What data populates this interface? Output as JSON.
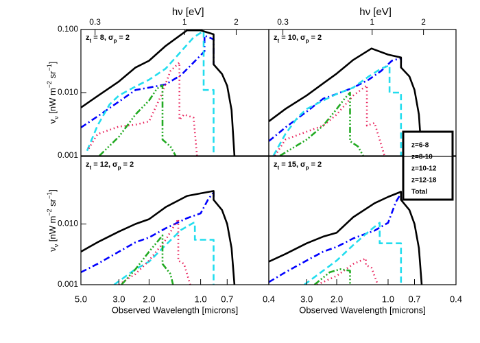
{
  "chart_data": [
    {
      "type": "line",
      "annotation": [
        "z",
        "t",
        " = 8, σ",
        "p",
        " = 2"
      ],
      "log_x": true,
      "log_y": true,
      "xlim": [
        5,
        0.4
      ],
      "ylim": [
        0.001,
        0.1
      ],
      "yticks": [
        {
          "value": 0.1,
          "label": "0.100"
        },
        {
          "value": 0.01,
          "label": "0.010"
        },
        0.001
      ],
      "x2label": "hν [eV]",
      "x2lim": [
        0.248,
        3.1
      ],
      "x2ticks": [
        0.3,
        1,
        2
      ],
      "ylabel": [
        "ν",
        "ν",
        "  [nW m",
        "−2",
        " sr",
        "−1",
        "]"
      ],
      "series": [
        {
          "name": "z=6-8",
          "color": "#0000ff",
          "line_style": "dashdot",
          "x": [
            5.0,
            4.0,
            3.0,
            2.4,
            2.0,
            1.6,
            1.3,
            1.1,
            0.95,
            0.95,
            0.84,
            0.84
          ],
          "values": [
            0.0028,
            0.0042,
            0.0072,
            0.011,
            0.012,
            0.0135,
            0.019,
            0.03,
            0.045,
            0.08,
            0.07,
            0.028
          ]
        },
        {
          "name": "z=8-10",
          "color": "#22ddee",
          "line_style": "dash",
          "x": [
            4.6,
            4.0,
            3.4,
            3.0,
            2.4,
            2.0,
            1.6,
            1.3,
            1.1,
            0.96,
            0.96,
            0.84,
            0.84
          ],
          "values": [
            0.0012,
            0.003,
            0.0065,
            0.009,
            0.0125,
            0.016,
            0.024,
            0.045,
            0.075,
            0.095,
            0.011,
            0.011,
            0.001
          ]
        },
        {
          "name": "z=10-12",
          "color": "#e8205a",
          "line_style": "dot",
          "x": [
            4.5,
            4.0,
            3.0,
            2.4,
            2.0,
            1.7,
            1.5,
            1.33,
            1.33,
            1.25,
            1.1,
            1.05
          ],
          "values": [
            0.0013,
            0.0022,
            0.0029,
            0.0031,
            0.0035,
            0.009,
            0.022,
            0.03,
            0.0037,
            0.0045,
            0.004,
            0.001
          ]
        },
        {
          "name": "z=12-18",
          "color": "#22aa22",
          "line_style": "dashdotdotdot",
          "x": [
            3.9,
            3.0,
            2.4,
            2.0,
            1.8,
            1.67,
            1.67,
            1.5,
            1.4
          ],
          "values": [
            0.001,
            0.002,
            0.0045,
            0.0075,
            0.0115,
            0.013,
            0.0018,
            0.0014,
            0.001
          ]
        },
        {
          "name": "Total",
          "color": "#000000",
          "line_style": "solid",
          "x": [
            5.0,
            4.0,
            3.0,
            2.4,
            2.0,
            1.6,
            1.2,
            1.0,
            0.84,
            0.84,
            0.75,
            0.7,
            0.66,
            0.635
          ],
          "values": [
            0.0058,
            0.0088,
            0.015,
            0.025,
            0.032,
            0.055,
            0.097,
            0.097,
            0.084,
            0.028,
            0.0197,
            0.0128,
            0.0053,
            0.001
          ]
        }
      ]
    },
    {
      "type": "line",
      "annotation": [
        "z",
        "t",
        " = 10, σ",
        "p",
        " = 2"
      ],
      "log_x": true,
      "log_y": true,
      "legend": "lower right",
      "xlim": [
        5,
        0.4
      ],
      "ylim": [
        0.001,
        0.1
      ],
      "x2label": "hν [eV]",
      "x2lim": [
        0.248,
        3.1
      ],
      "x2ticks": [
        0.3,
        1,
        2
      ],
      "series": [
        {
          "name": "z=6-8",
          "color": "#0000ff",
          "line_style": "dashdot",
          "x": [
            5.0,
            4.0,
            3.0,
            2.4,
            2.0,
            1.6,
            1.3,
            1.1,
            0.95,
            0.84,
            0.84
          ],
          "values": [
            0.0017,
            0.0028,
            0.005,
            0.008,
            0.0095,
            0.012,
            0.016,
            0.022,
            0.032,
            0.035,
            0.025
          ]
        },
        {
          "name": "z=8-10",
          "color": "#22ddee",
          "line_style": "dash",
          "x": [
            4.7,
            4.0,
            3.4,
            3.0,
            2.4,
            2.0,
            1.6,
            1.3,
            1.1,
            0.98,
            0.98,
            0.84,
            0.84
          ],
          "values": [
            0.001,
            0.0022,
            0.004,
            0.0055,
            0.0075,
            0.0095,
            0.012,
            0.018,
            0.024,
            0.027,
            0.01,
            0.01,
            0.001
          ]
        },
        {
          "name": "z=10-12",
          "color": "#e8205a",
          "line_style": "dot",
          "x": [
            4.6,
            4.0,
            3.0,
            2.4,
            2.0,
            1.6,
            1.33,
            1.33,
            1.2,
            1.05
          ],
          "values": [
            0.001,
            0.0018,
            0.0024,
            0.003,
            0.0045,
            0.009,
            0.013,
            0.003,
            0.0033,
            0.001
          ]
        },
        {
          "name": "z=12-18",
          "color": "#22aa22",
          "line_style": "dashdotdotdot",
          "x": [
            4.3,
            3.0,
            2.4,
            2.0,
            1.8,
            1.67,
            1.67,
            1.5,
            1.4
          ],
          "values": [
            0.001,
            0.0018,
            0.003,
            0.0055,
            0.008,
            0.01,
            0.0017,
            0.0014,
            0.001
          ]
        },
        {
          "name": "Total",
          "color": "#000000",
          "line_style": "solid",
          "x": [
            5.0,
            4.0,
            3.0,
            2.4,
            2.0,
            1.6,
            1.25,
            1.0,
            0.84,
            0.84,
            0.75,
            0.7,
            0.66,
            0.635
          ],
          "values": [
            0.0035,
            0.0055,
            0.009,
            0.014,
            0.02,
            0.033,
            0.05,
            0.04,
            0.036,
            0.025,
            0.018,
            0.011,
            0.0045,
            0.001
          ]
        }
      ]
    },
    {
      "type": "line",
      "annotation": [
        "z",
        "t",
        " = 12, σ",
        "p",
        " = 2"
      ],
      "log_x": true,
      "log_y": true,
      "xlim": [
        5,
        0.4
      ],
      "ylim": [
        0.001,
        0.13
      ],
      "yticks": [
        {
          "value": 0.01,
          "label": "0.010"
        },
        0.001
      ],
      "xticks": [
        {
          "value": 5,
          "label": "5.0"
        },
        {
          "value": 3,
          "label": "3.0"
        },
        {
          "value": 2,
          "label": "2.0"
        },
        {
          "value": 1,
          "label": "1.0"
        },
        0.7,
        0.4
      ],
      "xlabel": "Observed Wavelength [microns]",
      "ylabel": [
        "ν",
        "ν",
        "  [nW m",
        "−2",
        " sr",
        "−1",
        "]"
      ],
      "series": [
        {
          "name": "z=6-8",
          "color": "#0000ff",
          "line_style": "dashdot",
          "x": [
            5.0,
            4.0,
            3.0,
            2.4,
            2.0,
            1.6,
            1.2,
            1.0,
            0.9,
            0.84,
            0.84
          ],
          "values": [
            0.0016,
            0.0022,
            0.0035,
            0.005,
            0.006,
            0.0085,
            0.0125,
            0.015,
            0.026,
            0.033,
            0.025
          ]
        },
        {
          "name": "z=8-10",
          "color": "#22ddee",
          "line_style": "dash",
          "x": [
            3.2,
            2.4,
            2.0,
            1.6,
            1.3,
            1.1,
            1.08,
            1.08,
            0.84,
            0.84
          ],
          "values": [
            0.001,
            0.0018,
            0.0024,
            0.0045,
            0.008,
            0.0105,
            0.0105,
            0.0055,
            0.0055,
            0.001
          ]
        },
        {
          "name": "z=10-12",
          "color": "#e8205a",
          "line_style": "dot",
          "x": [
            3.0,
            2.4,
            2.0,
            1.6,
            1.35,
            1.35,
            1.25,
            1.15
          ],
          "values": [
            0.001,
            0.0015,
            0.0025,
            0.0055,
            0.012,
            0.0025,
            0.0022,
            0.001
          ]
        },
        {
          "name": "z=12-18",
          "color": "#22aa22",
          "line_style": "dashdotdotdot",
          "x": [
            2.9,
            2.4,
            2.0,
            1.8,
            1.67,
            1.67,
            1.5,
            1.45
          ],
          "values": [
            0.001,
            0.0018,
            0.0035,
            0.005,
            0.0065,
            0.0022,
            0.0015,
            0.001
          ]
        },
        {
          "name": "Total",
          "color": "#000000",
          "line_style": "solid",
          "x": [
            5.0,
            4.0,
            3.0,
            2.4,
            2.0,
            1.6,
            1.2,
            1.0,
            0.84,
            0.84,
            0.75,
            0.7,
            0.66,
            0.635
          ],
          "values": [
            0.0035,
            0.005,
            0.0075,
            0.01,
            0.012,
            0.019,
            0.029,
            0.032,
            0.035,
            0.025,
            0.017,
            0.01,
            0.004,
            0.001
          ]
        }
      ]
    },
    {
      "type": "line",
      "annotation": [
        "z",
        "t",
        " = 15, σ",
        "p",
        " = 2"
      ],
      "log_x": true,
      "log_y": true,
      "xlim": [
        5,
        0.4
      ],
      "ylim": [
        0.001,
        0.13
      ],
      "xticks": [
        {
          "value": 3,
          "label": "3.0"
        },
        {
          "value": 2,
          "label": "2.0"
        },
        {
          "value": 1,
          "label": "1.0"
        },
        0.7,
        0.4
      ],
      "xlabel": "Observed Wavelength [microns]",
      "series": [
        {
          "name": "z=6-8",
          "color": "#0000ff",
          "line_style": "dashdot",
          "x": [
            5.0,
            4.0,
            3.0,
            2.4,
            2.0,
            1.6,
            1.2,
            1.0,
            0.9,
            0.84,
            0.84
          ],
          "values": [
            0.0011,
            0.0016,
            0.0025,
            0.0035,
            0.0042,
            0.0058,
            0.0078,
            0.0105,
            0.023,
            0.032,
            0.025
          ]
        },
        {
          "name": "z=8-10",
          "color": "#22ddee",
          "line_style": "dash",
          "x": [
            3.1,
            2.4,
            2.0,
            1.6,
            1.3,
            1.12,
            1.12,
            0.84,
            0.84
          ],
          "values": [
            0.001,
            0.0017,
            0.0025,
            0.0045,
            0.0075,
            0.0105,
            0.0048,
            0.0048,
            0.001
          ]
        },
        {
          "name": "z=10-12",
          "color": "#e8205a",
          "line_style": "dot",
          "x": [
            2.6,
            2.0,
            1.6,
            1.35,
            1.35,
            1.25,
            1.15
          ],
          "values": [
            0.001,
            0.0014,
            0.0022,
            0.0027,
            0.0021,
            0.0019,
            0.001
          ]
        },
        {
          "name": "z=12-18",
          "color": "#22aa22",
          "line_style": "dashdotdotdot",
          "x": [
            2.7,
            2.2,
            1.9,
            1.67,
            1.67
          ],
          "values": [
            0.001,
            0.0016,
            0.0018,
            0.0017,
            0.001
          ]
        },
        {
          "name": "Total",
          "color": "#000000",
          "line_style": "solid",
          "x": [
            5.0,
            4.0,
            3.0,
            2.4,
            2.0,
            1.6,
            1.2,
            1.0,
            0.84,
            0.84,
            0.75,
            0.7,
            0.66,
            0.635
          ],
          "values": [
            0.0024,
            0.0032,
            0.0048,
            0.0062,
            0.0072,
            0.013,
            0.022,
            0.028,
            0.034,
            0.025,
            0.017,
            0.01,
            0.004,
            0.001
          ]
        }
      ]
    }
  ]
}
